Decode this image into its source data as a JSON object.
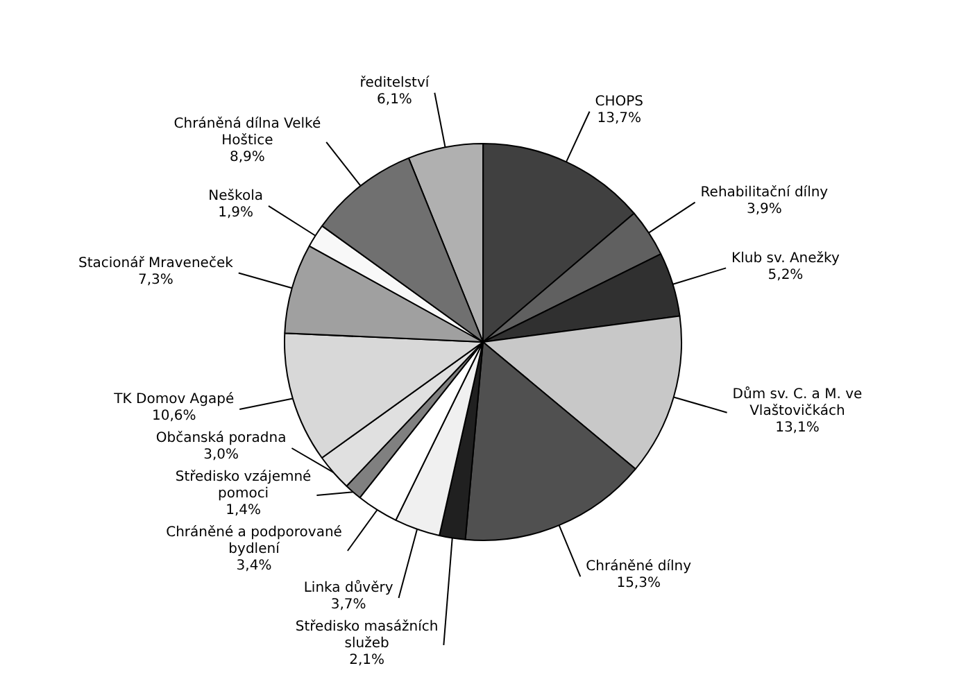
{
  "chart_data": {
    "type": "pie",
    "categories": [
      "ředitelství",
      "CHOPS",
      "Rehabilitační dílny",
      "Klub sv. Anežky",
      "Dům sv. C. a M. ve Vlaštovičkách",
      "Chráněné dílny",
      "Středisko masážních služeb",
      "Linka důvěry",
      "Chráněné a podporované bydlení",
      "Středisko vzájemné pomoci",
      "Občanská poradna",
      "TK Domov Agapé",
      "Stacionář Mraveneček",
      "Neškola",
      "Chráněná dílna Velké Hoštice"
    ],
    "values": [
      6.1,
      13.7,
      3.9,
      5.2,
      13.1,
      15.3,
      2.1,
      3.7,
      3.4,
      1.4,
      3.0,
      10.6,
      7.3,
      1.9,
      8.9
    ],
    "value_labels": [
      "6,1%",
      "13,7%",
      "3,9%",
      "5,2%",
      "13,1%",
      "15,3%",
      "2,1%",
      "3,7%",
      "3,4%",
      "1,4%",
      "3,0%",
      "10,6%",
      "7,3%",
      "1,9%",
      "8,9%"
    ],
    "colors": [
      "#b0b0b0",
      "#404040",
      "#606060",
      "#303030",
      "#c8c8c8",
      "#505050",
      "#202020",
      "#f0f0f0",
      "#ffffff",
      "#808080",
      "#e0e0e0",
      "#d8d8d8",
      "#a0a0a0",
      "#f8f8f8",
      "#707070"
    ],
    "legend": false
  }
}
